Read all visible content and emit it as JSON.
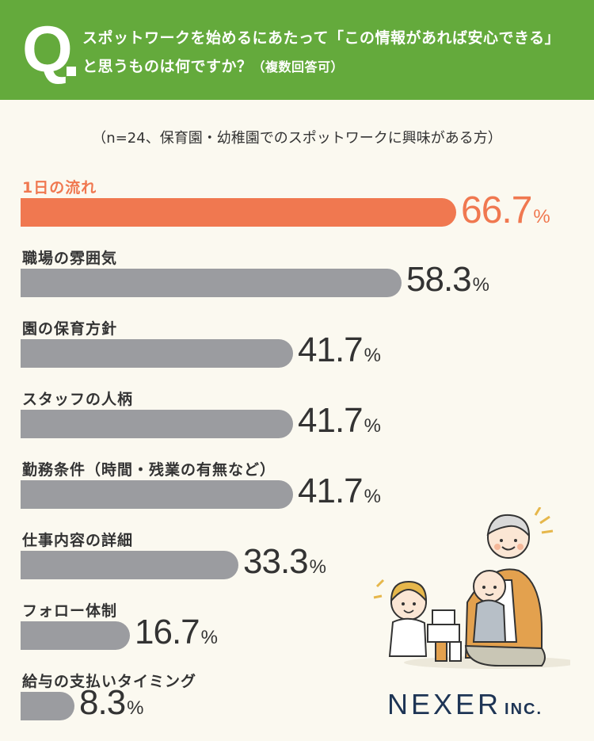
{
  "header": {
    "q_letter": "Q",
    "question_line1": "スポットワークを始めるにあたって「この情報があれば安心できる」",
    "question_line2": "と思うものは何ですか？",
    "question_note": "（複数回答可）"
  },
  "sample_note": "（n=24、保育園・幼稚園でのスポットワークに興味がある方）",
  "chart_data": {
    "type": "bar",
    "orientation": "horizontal",
    "categories": [
      "1日の流れ",
      "職場の雰囲気",
      "園の保育方針",
      "スタッフの人柄",
      "勤務条件（時間・残業の有無など）",
      "仕事内容の詳細",
      "フォロー体制",
      "給与の支払いタイミング"
    ],
    "values": [
      66.7,
      58.3,
      41.7,
      41.7,
      41.7,
      33.3,
      16.7,
      8.3
    ],
    "value_labels": [
      "66.7",
      "58.3",
      "41.7",
      "41.7",
      "41.7",
      "33.3",
      "16.7",
      "8.3"
    ],
    "unit": "%",
    "highlight_index": 0,
    "colors": {
      "highlight": "#f07850",
      "default": "#9b9ca0",
      "header": "#64aa3c",
      "logo": "#1e3555"
    },
    "xlim": [
      0,
      100
    ]
  },
  "logo": {
    "main": "NEXER",
    "sub": "INC."
  }
}
